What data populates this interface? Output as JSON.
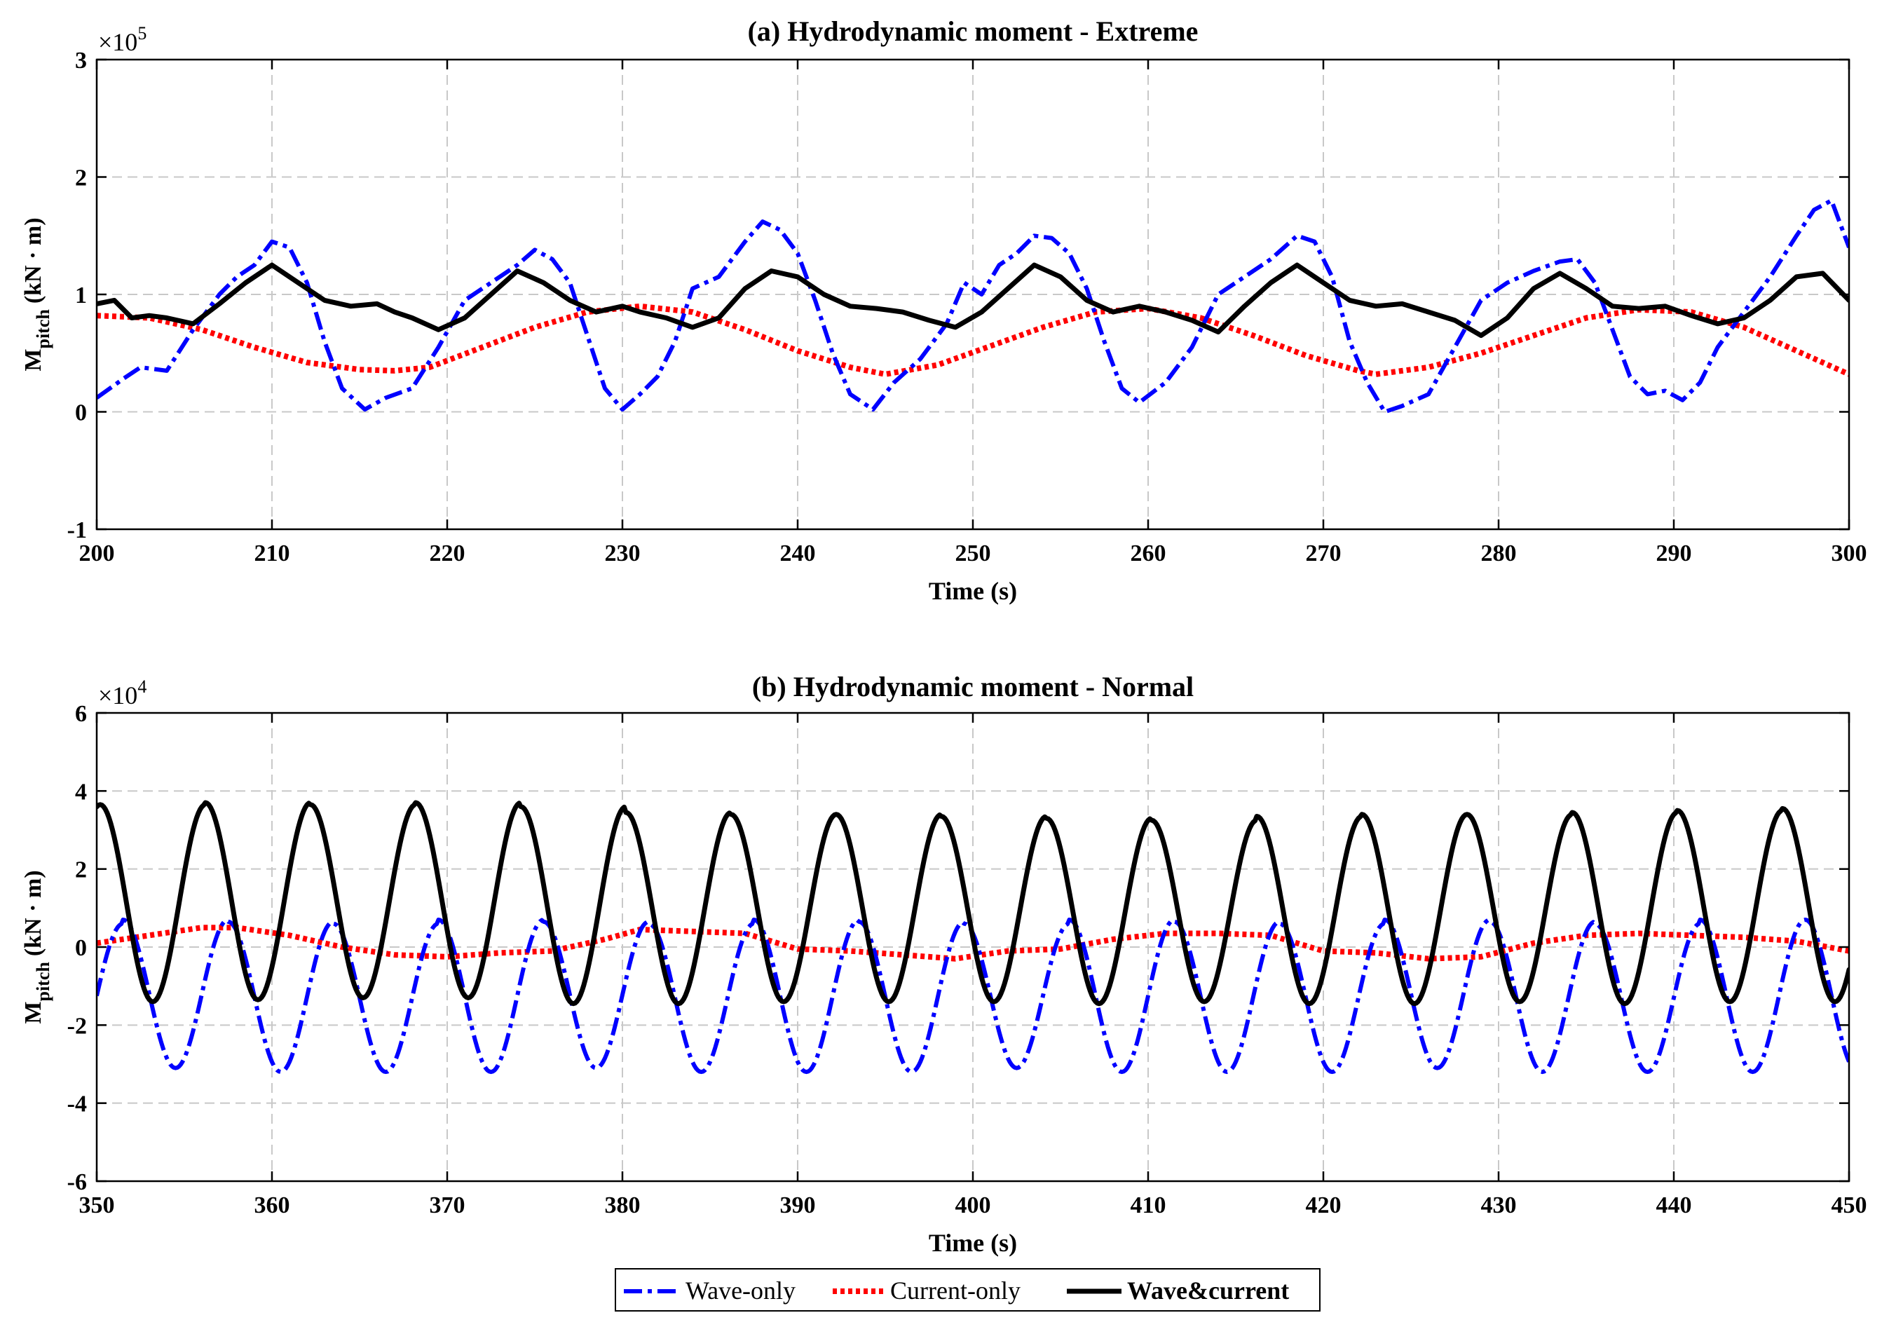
{
  "colors": {
    "wave": "#0000ff",
    "current": "#ff0000",
    "combined": "#000000",
    "grid": "#c8c8c8"
  },
  "legend": {
    "entries": [
      "Wave-only",
      "Current-only",
      "Wave&current"
    ]
  },
  "chart_data": [
    {
      "type": "line",
      "title": "(a) Hydrodynamic moment - Extreme",
      "xlabel": "Time (s)",
      "ylabel_main": "M",
      "ylabel_sub": "pitch",
      "ylabel_unit": "(kN · m)",
      "exponent_base": "×10",
      "exponent_power": "5",
      "scale": 100000,
      "xlim": [
        200,
        300
      ],
      "ylim": [
        -1,
        3
      ],
      "xticks": [
        200,
        210,
        220,
        230,
        240,
        250,
        260,
        270,
        280,
        290,
        300
      ],
      "yticks": [
        -1,
        0,
        1,
        2,
        3
      ],
      "grid": true,
      "series": [
        {
          "name": "Wave-only",
          "style": "dashdot",
          "x": [
            200,
            201.5,
            202.5,
            204,
            205.5,
            207,
            208,
            209,
            210,
            211,
            212,
            213,
            214,
            215.3,
            216.5,
            218,
            219.5,
            221,
            222.5,
            224,
            225,
            226,
            227,
            228,
            229,
            230,
            231,
            232,
            233,
            234,
            235.5,
            237,
            238,
            239,
            240,
            241,
            242,
            243,
            244.3,
            245.5,
            247,
            248.5,
            249.5,
            250.5,
            251.5,
            252.5,
            253.5,
            254.5,
            255.5,
            256.5,
            257.5,
            258.5,
            259.5,
            261,
            262.5,
            264,
            265.5,
            267,
            268.5,
            269.5,
            270.5,
            271.5,
            272.5,
            273.5,
            274.5,
            276,
            277.5,
            279,
            280.5,
            282,
            283.5,
            284.5,
            285.5,
            286.5,
            287.5,
            288.5,
            289.5,
            290.5,
            291.5,
            292.5,
            294,
            295.5,
            297,
            298,
            299,
            300
          ],
          "y": [
            0.12,
            0.28,
            0.38,
            0.35,
            0.7,
            1.0,
            1.15,
            1.25,
            1.45,
            1.4,
            1.1,
            0.6,
            0.2,
            0.02,
            0.12,
            0.2,
            0.55,
            0.95,
            1.1,
            1.25,
            1.38,
            1.3,
            1.1,
            0.65,
            0.2,
            0.02,
            0.15,
            0.3,
            0.6,
            1.05,
            1.15,
            1.45,
            1.62,
            1.55,
            1.35,
            0.95,
            0.5,
            0.15,
            0.02,
            0.25,
            0.45,
            0.75,
            1.1,
            1.0,
            1.25,
            1.35,
            1.5,
            1.48,
            1.35,
            1.05,
            0.6,
            0.2,
            0.08,
            0.25,
            0.55,
            1.0,
            1.15,
            1.3,
            1.5,
            1.45,
            1.15,
            0.6,
            0.25,
            0.0,
            0.05,
            0.15,
            0.55,
            0.95,
            1.1,
            1.2,
            1.28,
            1.3,
            1.1,
            0.7,
            0.3,
            0.15,
            0.18,
            0.1,
            0.25,
            0.55,
            0.85,
            1.15,
            1.5,
            1.72,
            1.8,
            1.4
          ]
        },
        {
          "name": "Current-only",
          "style": "dotted",
          "x": [
            200,
            203,
            206,
            209,
            212,
            215,
            217,
            219,
            222,
            225,
            228,
            231,
            234,
            237,
            240,
            243,
            245,
            248,
            251,
            254,
            257,
            260,
            263,
            266,
            269,
            272,
            273,
            276,
            279,
            282,
            285,
            288,
            291,
            294,
            297,
            300
          ],
          "y": [
            0.82,
            0.8,
            0.7,
            0.55,
            0.42,
            0.36,
            0.35,
            0.38,
            0.55,
            0.72,
            0.85,
            0.9,
            0.85,
            0.7,
            0.52,
            0.38,
            0.32,
            0.4,
            0.56,
            0.72,
            0.85,
            0.88,
            0.8,
            0.65,
            0.48,
            0.35,
            0.32,
            0.38,
            0.5,
            0.65,
            0.8,
            0.87,
            0.85,
            0.72,
            0.52,
            0.32
          ]
        },
        {
          "name": "Wave&current",
          "style": "solid",
          "x": [
            200,
            201,
            202,
            203,
            204,
            205.5,
            207,
            208.5,
            210,
            211.5,
            213,
            214.5,
            216,
            217,
            218,
            219.5,
            221,
            222.5,
            224,
            225.5,
            227,
            228.5,
            230,
            231,
            232.5,
            234,
            235.5,
            237,
            238.5,
            240,
            241.5,
            243,
            244.5,
            246,
            247.5,
            249,
            250.5,
            252,
            253.5,
            255,
            256.5,
            258,
            259.5,
            261,
            262.5,
            264,
            265.5,
            267,
            268.5,
            270,
            271.5,
            273,
            274.5,
            276,
            277.5,
            279,
            280.5,
            282,
            283.5,
            285,
            286.5,
            288,
            289.5,
            291,
            292.5,
            294,
            295.5,
            297,
            298.5,
            300
          ],
          "y": [
            0.92,
            0.95,
            0.8,
            0.82,
            0.8,
            0.75,
            0.92,
            1.1,
            1.25,
            1.1,
            0.95,
            0.9,
            0.92,
            0.85,
            0.8,
            0.7,
            0.8,
            1.0,
            1.2,
            1.1,
            0.95,
            0.85,
            0.9,
            0.85,
            0.8,
            0.72,
            0.8,
            1.05,
            1.2,
            1.15,
            1.0,
            0.9,
            0.88,
            0.85,
            0.78,
            0.72,
            0.85,
            1.05,
            1.25,
            1.15,
            0.95,
            0.85,
            0.9,
            0.85,
            0.78,
            0.68,
            0.9,
            1.1,
            1.25,
            1.1,
            0.95,
            0.9,
            0.92,
            0.85,
            0.78,
            0.65,
            0.8,
            1.05,
            1.18,
            1.05,
            0.9,
            0.88,
            0.9,
            0.82,
            0.75,
            0.8,
            0.95,
            1.15,
            1.18,
            0.95
          ]
        }
      ]
    },
    {
      "type": "line",
      "title": "(b) Hydrodynamic moment - Normal",
      "xlabel": "Time (s)",
      "ylabel_main": "M",
      "ylabel_sub": "pitch",
      "ylabel_unit": "(kN · m)",
      "exponent_base": "×10",
      "exponent_power": "4",
      "scale": 10000,
      "xlim": [
        350,
        450
      ],
      "ylim": [
        -6,
        6
      ],
      "xticks": [
        350,
        360,
        370,
        380,
        390,
        400,
        410,
        420,
        430,
        440,
        450
      ],
      "yticks": [
        -6,
        -4,
        -2,
        0,
        2,
        4,
        6
      ],
      "grid": true,
      "series": [
        {
          "name": "Wave-only",
          "style": "dashdot",
          "period": 6.0,
          "phase_peak_time": 351.5,
          "mean": -1.25,
          "amplitude": 1.9,
          "peak_values": [
            0.6,
            0.7,
            0.65,
            0.6,
            0.7,
            0.65,
            0.6,
            0.7,
            0.65,
            0.6,
            0.7,
            0.65,
            0.6,
            0.7,
            0.65,
            0.6,
            0.7
          ],
          "trough_values": [
            -3.1,
            -3.1,
            -3.2,
            -3.2,
            -3.2,
            -3.1,
            -3.2,
            -3.2,
            -3.2,
            -3.1,
            -3.2,
            -3.2,
            -3.2,
            -3.1,
            -3.2,
            -3.2,
            -3.2
          ],
          "xrange": [
            350,
            450
          ]
        },
        {
          "name": "Current-only",
          "style": "dotted",
          "x": [
            350,
            353,
            356,
            358,
            361,
            364,
            367,
            370,
            373,
            376,
            379,
            381,
            384,
            387,
            390,
            393,
            396,
            399,
            402,
            405,
            408,
            411,
            414,
            417,
            420,
            423,
            426,
            429,
            432,
            435,
            438,
            441,
            444,
            447,
            450
          ],
          "y": [
            0.1,
            0.3,
            0.5,
            0.5,
            0.3,
            0.0,
            -0.2,
            -0.25,
            -0.15,
            -0.1,
            0.2,
            0.45,
            0.4,
            0.35,
            -0.05,
            -0.1,
            -0.2,
            -0.3,
            -0.1,
            -0.05,
            0.2,
            0.35,
            0.35,
            0.3,
            -0.1,
            -0.15,
            -0.3,
            -0.25,
            0.1,
            0.3,
            0.35,
            0.3,
            0.25,
            0.15,
            -0.1
          ]
        },
        {
          "name": "Wave&current",
          "style": "solid",
          "period": 6.0,
          "phase_peak_time": 356.2,
          "mean": 1.15,
          "amplitude": 2.45,
          "peak_values": [
            3.65,
            3.7,
            3.65,
            3.7,
            3.6,
            3.45,
            3.4,
            3.4,
            3.35,
            3.3,
            3.25,
            3.35,
            3.4,
            3.4,
            3.45,
            3.5,
            3.55
          ],
          "trough_values": [
            -1.4,
            -1.35,
            -1.3,
            -1.3,
            -1.45,
            -1.45,
            -1.4,
            -1.4,
            -1.4,
            -1.45,
            -1.4,
            -1.45,
            -1.45,
            -1.4,
            -1.45,
            -1.4,
            -1.4
          ],
          "xrange": [
            350,
            450
          ]
        }
      ]
    }
  ]
}
